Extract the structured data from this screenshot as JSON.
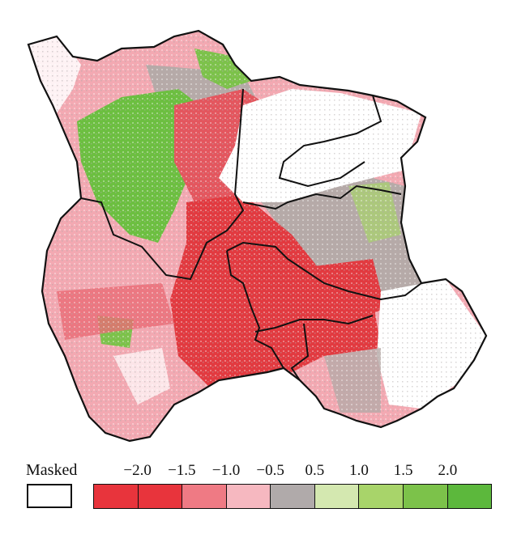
{
  "legend": {
    "masked_label": "Masked",
    "masked_color": "#ffffff",
    "classes": [
      {
        "color": "#e8343c"
      },
      {
        "color": "#e8343c"
      },
      {
        "color": "#ef7a84"
      },
      {
        "color": "#f6b8c0"
      },
      {
        "color": "#b0aaaa"
      },
      {
        "color": "#d4e8b0"
      },
      {
        "color": "#a8d46a"
      },
      {
        "color": "#7cc24a"
      },
      {
        "color": "#5cb83c"
      }
    ],
    "ticks": [
      "−2.0",
      "−1.5",
      "−1.0",
      "−0.5",
      "0.5",
      "1.0",
      "1.5",
      "2.0"
    ]
  },
  "map": {
    "boundary_color": "#111111",
    "dominant_patches": [
      {
        "region": "north-west",
        "category": "green",
        "color": "#6cbf40"
      },
      {
        "region": "west",
        "category": "pink",
        "color": "#f3a9b2"
      },
      {
        "region": "central-south",
        "category": "red",
        "color": "#e23a40"
      },
      {
        "region": "east",
        "category": "grey",
        "color": "#b6aaa8"
      },
      {
        "region": "north-east",
        "category": "masked",
        "color": "#ffffff"
      },
      {
        "region": "south-east",
        "category": "masked",
        "color": "#ffffff"
      }
    ]
  }
}
